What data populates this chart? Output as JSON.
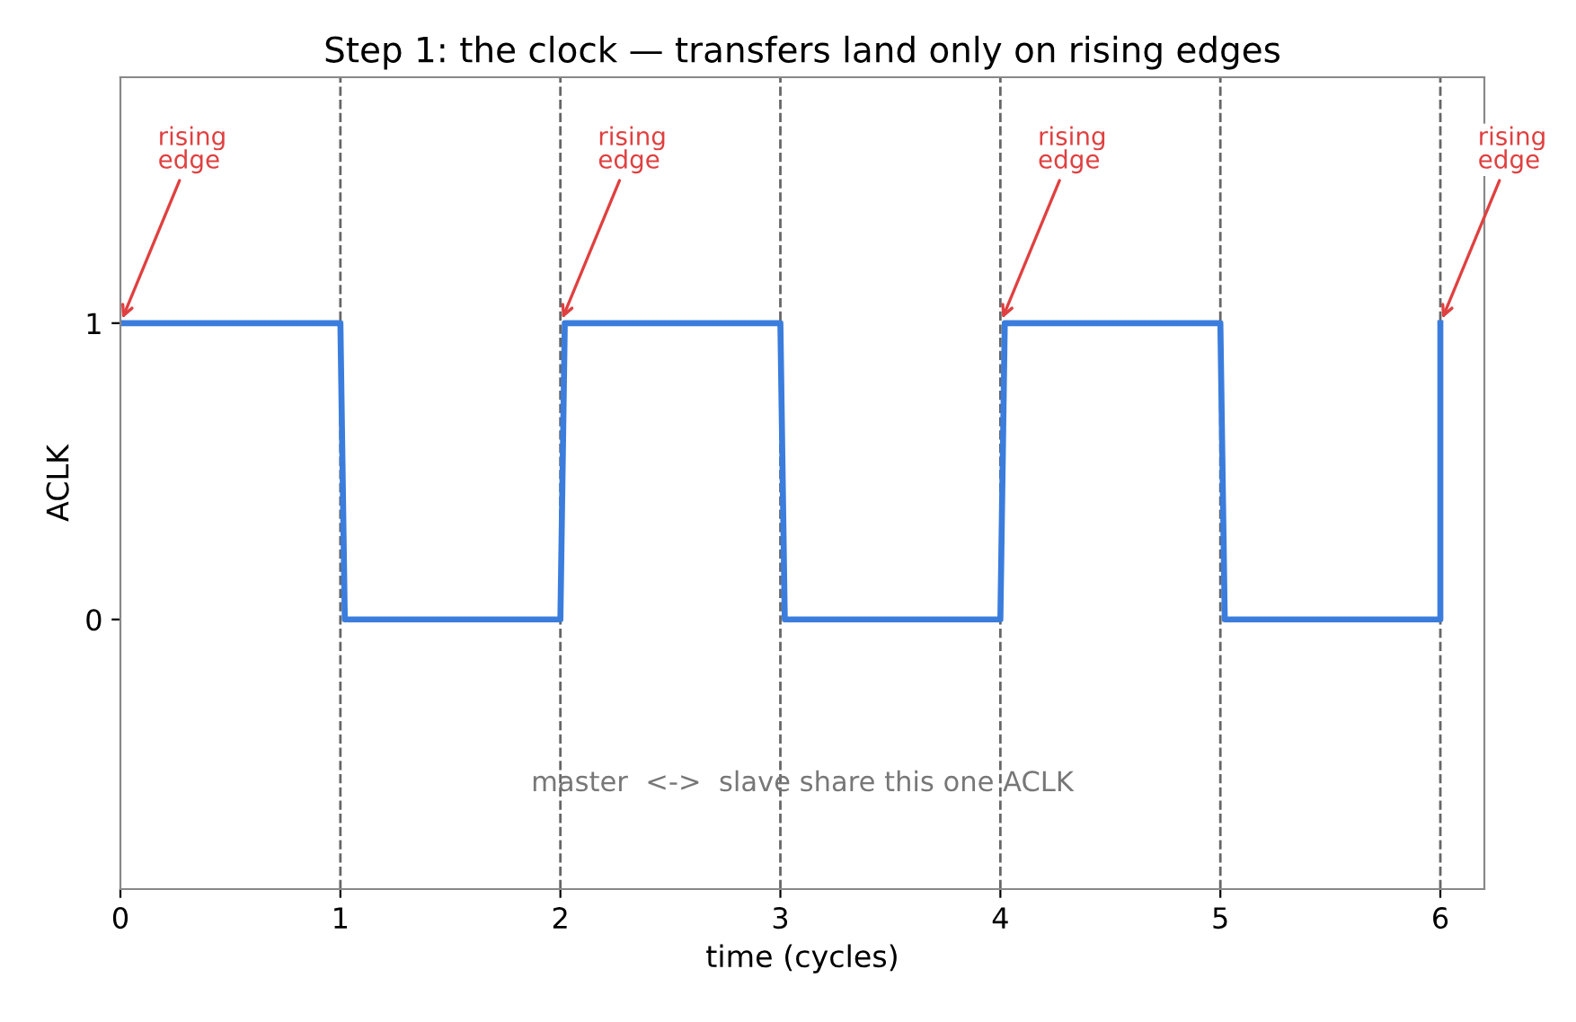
{
  "chart_data": {
    "type": "line",
    "title": "Step 1: the clock — transfers land only on rising edges",
    "xlabel": "time (cycles)",
    "ylabel": "ACLK",
    "series": [
      {
        "color": "#3b7ddd",
        "x": [
          0,
          1,
          1.02,
          2,
          2.02,
          3,
          3.02,
          4,
          4.02,
          5,
          5.02,
          6,
          6.0
        ],
        "values": [
          1,
          1,
          0,
          0,
          1,
          1,
          0,
          0,
          1,
          1,
          0,
          0,
          1
        ]
      }
    ],
    "xlim": [
      0,
      6.2
    ],
    "ylim": [
      -0.91,
      1.83
    ],
    "xticks": [
      0,
      1,
      2,
      3,
      4,
      5,
      6
    ],
    "yticks": [
      0,
      1
    ],
    "grid": false,
    "marker": "none",
    "line_style": "solid",
    "ref_lines": [
      {
        "axis": "x",
        "value": 1,
        "color": "#666666",
        "line_style": "dashed"
      },
      {
        "axis": "x",
        "value": 2,
        "color": "#666666",
        "line_style": "dashed"
      },
      {
        "axis": "x",
        "value": 3,
        "color": "#666666",
        "line_style": "dashed"
      },
      {
        "axis": "x",
        "value": 4,
        "color": "#666666",
        "line_style": "dashed"
      },
      {
        "axis": "x",
        "value": 5,
        "color": "#666666",
        "line_style": "dashed"
      },
      {
        "axis": "x",
        "value": 6,
        "color": "#666666",
        "line_style": "dashed"
      }
    ],
    "annotations": [
      {
        "text": "rising\nedge",
        "x": 0,
        "y": 1
      },
      {
        "text": "rising\nedge",
        "x": 2,
        "y": 1
      },
      {
        "text": "rising\nedge",
        "x": 4,
        "y": 1
      },
      {
        "text": "rising\nedge",
        "x": 6,
        "y": 1
      },
      "master  <->  slave share this one ACLK"
    ]
  }
}
